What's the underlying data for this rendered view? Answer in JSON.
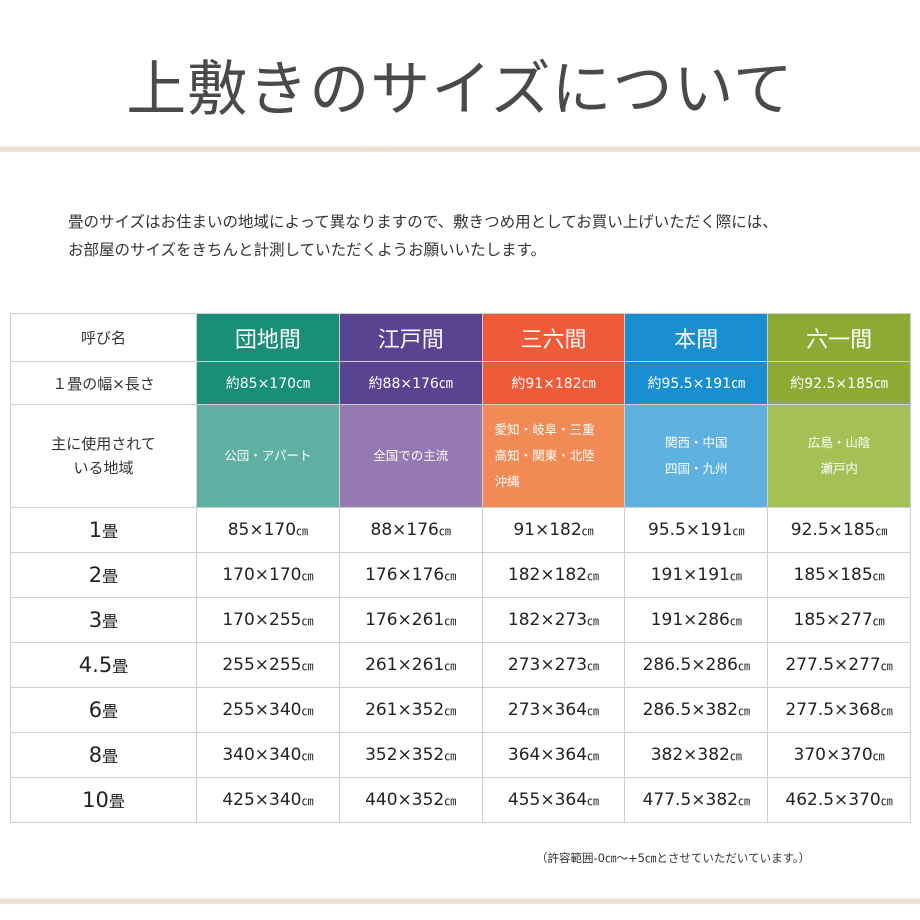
{
  "title": "上敷きのサイズについて",
  "intro": {
    "line1": "畳のサイズはお住まいの地域によって異なりますので、敷きつめ用としてお買い上げいただく際には、",
    "line2": "お部屋のサイズをきちんと計測していただくようお願いいたします。"
  },
  "table": {
    "label_name": "呼び名",
    "label_width_length": "１畳の幅×長さ",
    "label_area_line1": "主に使用されて",
    "label_area_line2": "いる地域",
    "columns": [
      {
        "name": "団地間",
        "size": "約85×170㎝",
        "area_lines": [
          "公団・アパート"
        ],
        "color_dark": "#198e78",
        "color_light": "#5fb0a2"
      },
      {
        "name": "江戸間",
        "size": "約88×176㎝",
        "area_lines": [
          "全国での主流"
        ],
        "color_dark": "#5a4391",
        "color_light": "#9679b2"
      },
      {
        "name": "三六間",
        "size": "約91×182㎝",
        "area_lines": [
          "愛知・岐阜・三重",
          "高知・関東・北陸",
          "沖縄"
        ],
        "color_dark": "#ef5a38",
        "color_light": "#f28a55"
      },
      {
        "name": "本間",
        "size": "約95.5×191㎝",
        "area_lines": [
          "関西・中国",
          "四国・九州"
        ],
        "color_dark": "#1a8fd0",
        "color_light": "#5fb2e0"
      },
      {
        "name": "六一間",
        "size": "約92.5×185㎝",
        "area_lines": [
          "広島・山陰",
          "瀬戸内"
        ],
        "color_dark": "#8cab35",
        "color_light": "#a3c154"
      }
    ],
    "unit_jo": "畳",
    "unit_cm": "㎝",
    "rows": [
      {
        "num": "1",
        "values": [
          "85×170",
          "88×176",
          "91×182",
          "95.5×191",
          "92.5×185"
        ]
      },
      {
        "num": "2",
        "values": [
          "170×170",
          "176×176",
          "182×182",
          "191×191",
          "185×185"
        ]
      },
      {
        "num": "3",
        "values": [
          "170×255",
          "176×261",
          "182×273",
          "191×286",
          "185×277"
        ]
      },
      {
        "num": "4.5",
        "values": [
          "255×255",
          "261×261",
          "273×273",
          "286.5×286",
          "277.5×277"
        ]
      },
      {
        "num": "6",
        "values": [
          "255×340",
          "261×352",
          "273×364",
          "286.5×382",
          "277.5×368"
        ]
      },
      {
        "num": "8",
        "values": [
          "340×340",
          "352×352",
          "364×364",
          "382×382",
          "370×370"
        ]
      },
      {
        "num": "10",
        "values": [
          "425×340",
          "440×352",
          "455×364",
          "477.5×382",
          "462.5×370"
        ]
      }
    ]
  },
  "note": "（許容範囲-0㎝～+5㎝とさせていただいています。）"
}
